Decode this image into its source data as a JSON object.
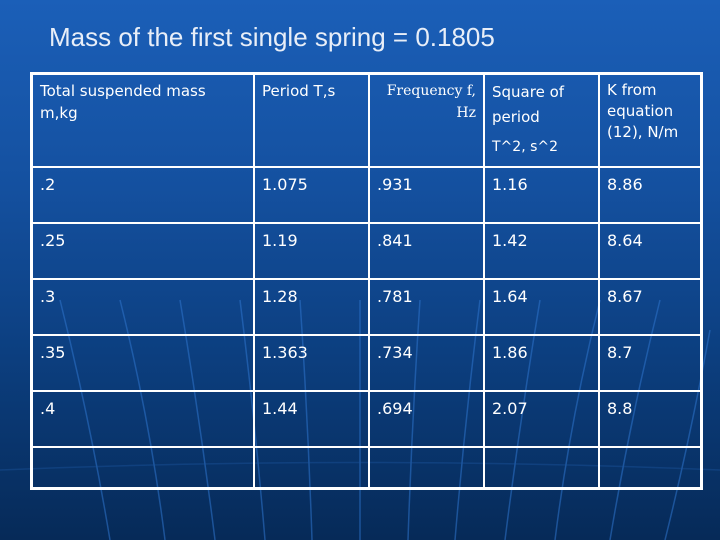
{
  "title": "Mass of the first single spring = 0.1805",
  "table": {
    "headers": [
      "Total suspended mass m,kg",
      "Period T,s",
      "Frequency f, Hz",
      "Square of period",
      "K from equation (12), N/m"
    ],
    "header_sub": "T^2, s^2",
    "rows": [
      [
        ".2",
        "1.075",
        ".931",
        "1.16",
        "8.86"
      ],
      [
        ".25",
        "1.19",
        ".841",
        "1.42",
        "8.64"
      ],
      [
        ".3",
        "1.28",
        ".781",
        "1.64",
        "8.67"
      ],
      [
        ".35",
        "1.363",
        ".734",
        "1.86",
        "8.7"
      ],
      [
        ".4",
        "1.44",
        ".694",
        "2.07",
        "8.8"
      ],
      [
        "",
        "",
        "",
        "",
        ""
      ]
    ]
  }
}
